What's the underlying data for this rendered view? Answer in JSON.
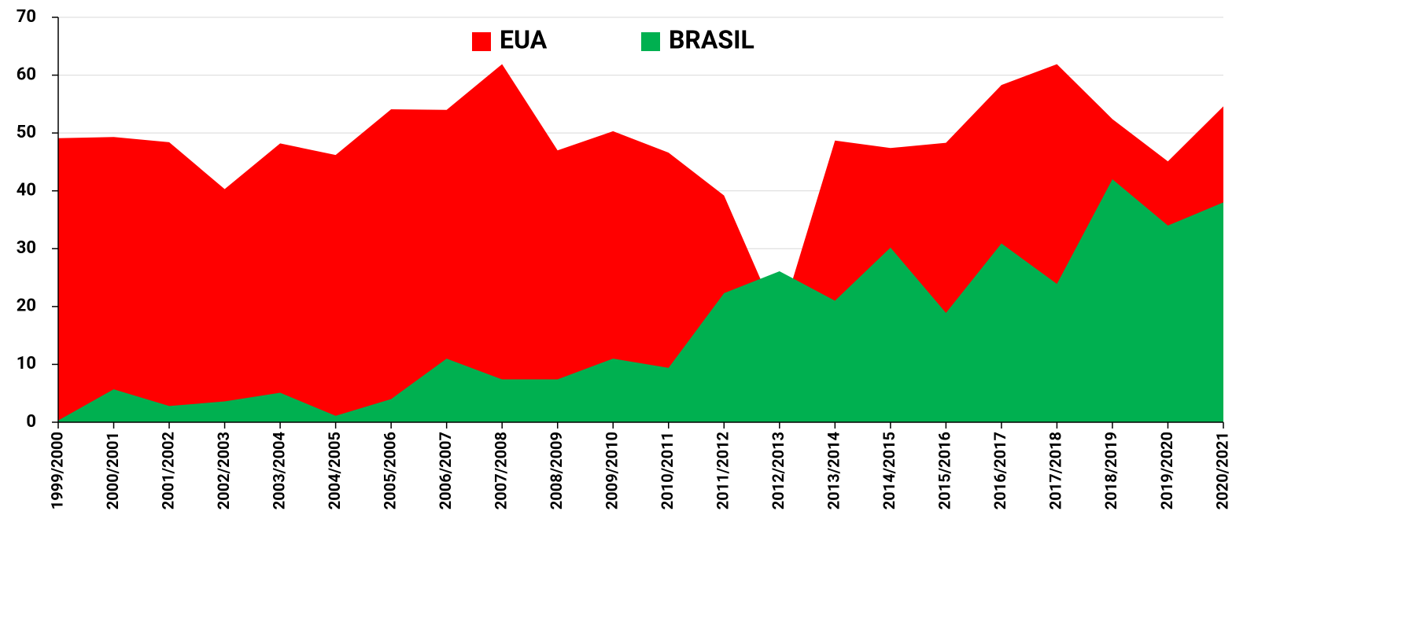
{
  "chart_data": {
    "type": "area",
    "categories": [
      "1999/2000",
      "2000/2001",
      "2001/2002",
      "2002/2003",
      "2003/2004",
      "2004/2005",
      "2005/2006",
      "2006/2007",
      "2007/2008",
      "2008/2009",
      "2009/2010",
      "2010/2011",
      "2011/2012",
      "2012/2013",
      "2013/2014",
      "2014/2015",
      "2015/2016",
      "2016/2017",
      "2017/2018",
      "2018/2019",
      "2019/2020",
      "2020/2021"
    ],
    "series": [
      {
        "name": "EUA",
        "color": "#ff0000",
        "values": [
          49.1,
          49.3,
          48.4,
          40.3,
          48.2,
          46.2,
          54.1,
          54.0,
          61.9,
          47.0,
          50.3,
          46.6,
          39.2,
          17.2,
          48.7,
          47.4,
          48.3,
          58.3,
          61.9,
          52.4,
          45.1,
          54.6
        ]
      },
      {
        "name": "BRASIL",
        "color": "#00b050",
        "values": [
          0.3,
          5.7,
          2.8,
          3.6,
          5.1,
          1.1,
          4.0,
          11.0,
          7.4,
          7.4,
          11.0,
          9.4,
          22.3,
          26.1,
          21.0,
          30.2,
          18.9,
          30.9,
          23.9,
          42.0,
          34.0,
          38.0
        ]
      }
    ],
    "ylim": [
      0,
      70
    ],
    "yticks": [
      0,
      10,
      20,
      30,
      40,
      50,
      60,
      70
    ],
    "grid": true,
    "legend": "top"
  }
}
